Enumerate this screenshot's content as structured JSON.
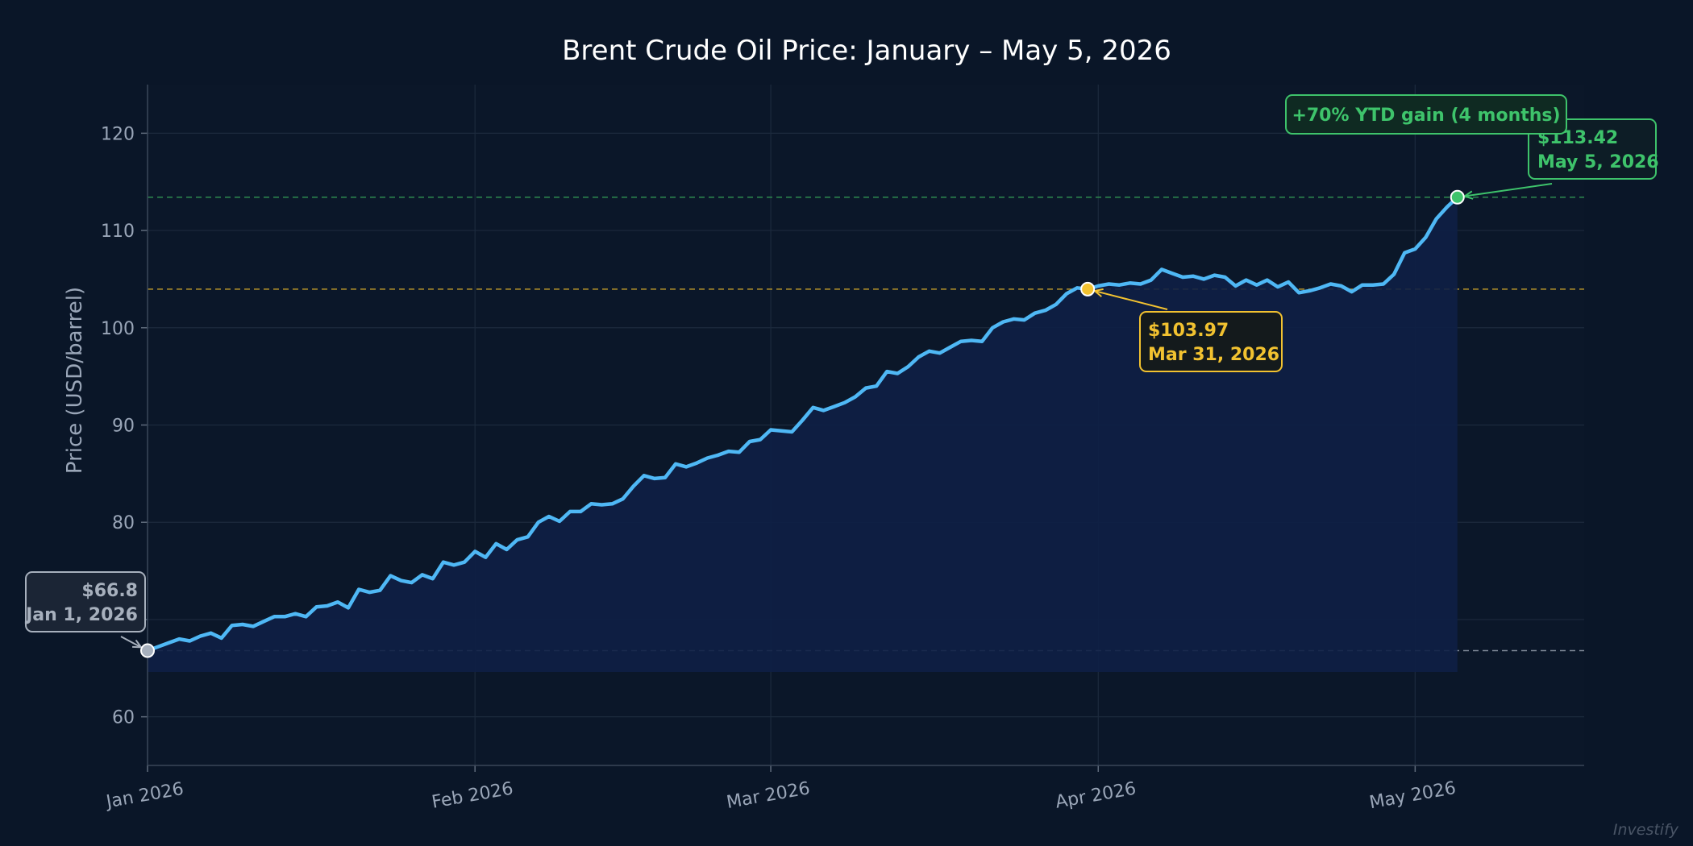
{
  "chart_data": {
    "type": "line",
    "title": "Brent Crude Oil Price: January – May 5, 2026",
    "xlabel": "",
    "ylabel": "Price (USD/barrel)",
    "xlim": [
      "2026-01-01",
      "2026-05-17"
    ],
    "ylim": [
      55,
      125
    ],
    "y_ticks": [
      60,
      70,
      80,
      90,
      100,
      110,
      120
    ],
    "x_ticks": [
      {
        "date": "2026-01-01",
        "label": "Jan 2026"
      },
      {
        "date": "2026-02-01",
        "label": "Feb 2026"
      },
      {
        "date": "2026-03-01",
        "label": "Mar 2026"
      },
      {
        "date": "2026-04-01",
        "label": "Apr 2026"
      },
      {
        "date": "2026-05-01",
        "label": "May 2026"
      }
    ],
    "grid": true,
    "line_color": "#4fb8f5",
    "series": [
      {
        "points": [
          [
            "2026-01-01",
            66.8
          ],
          [
            "2026-01-02",
            67.2
          ],
          [
            "2026-01-03",
            67.6
          ],
          [
            "2026-01-04",
            68.0
          ],
          [
            "2026-01-05",
            67.8
          ],
          [
            "2026-01-06",
            68.3
          ],
          [
            "2026-01-07",
            68.6
          ],
          [
            "2026-01-08",
            68.1
          ],
          [
            "2026-01-09",
            69.4
          ],
          [
            "2026-01-10",
            69.5
          ],
          [
            "2026-01-11",
            69.3
          ],
          [
            "2026-01-12",
            69.8
          ],
          [
            "2026-01-13",
            70.3
          ],
          [
            "2026-01-14",
            70.3
          ],
          [
            "2026-01-15",
            70.6
          ],
          [
            "2026-01-16",
            70.3
          ],
          [
            "2026-01-17",
            71.3
          ],
          [
            "2026-01-18",
            71.4
          ],
          [
            "2026-01-19",
            71.8
          ],
          [
            "2026-01-20",
            71.2
          ],
          [
            "2026-01-21",
            73.1
          ],
          [
            "2026-01-22",
            72.8
          ],
          [
            "2026-01-23",
            73.0
          ],
          [
            "2026-01-24",
            74.5
          ],
          [
            "2026-01-25",
            74.0
          ],
          [
            "2026-01-26",
            73.8
          ],
          [
            "2026-01-27",
            74.6
          ],
          [
            "2026-01-28",
            74.2
          ],
          [
            "2026-01-29",
            75.9
          ],
          [
            "2026-01-30",
            75.6
          ],
          [
            "2026-01-31",
            75.9
          ],
          [
            "2026-02-01",
            77.0
          ],
          [
            "2026-02-02",
            76.4
          ],
          [
            "2026-02-03",
            77.8
          ],
          [
            "2026-02-04",
            77.2
          ],
          [
            "2026-02-05",
            78.2
          ],
          [
            "2026-02-06",
            78.5
          ],
          [
            "2026-02-07",
            80.0
          ],
          [
            "2026-02-08",
            80.6
          ],
          [
            "2026-02-09",
            80.1
          ],
          [
            "2026-02-10",
            81.1
          ],
          [
            "2026-02-11",
            81.1
          ],
          [
            "2026-02-12",
            81.9
          ],
          [
            "2026-02-13",
            81.8
          ],
          [
            "2026-02-14",
            81.9
          ],
          [
            "2026-02-15",
            82.4
          ],
          [
            "2026-02-16",
            83.7
          ],
          [
            "2026-02-17",
            84.8
          ],
          [
            "2026-02-18",
            84.5
          ],
          [
            "2026-02-19",
            84.6
          ],
          [
            "2026-02-20",
            86.0
          ],
          [
            "2026-02-21",
            85.7
          ],
          [
            "2026-02-22",
            86.1
          ],
          [
            "2026-02-23",
            86.6
          ],
          [
            "2026-02-24",
            86.9
          ],
          [
            "2026-02-25",
            87.3
          ],
          [
            "2026-02-26",
            87.2
          ],
          [
            "2026-02-27",
            88.3
          ],
          [
            "2026-02-28",
            88.5
          ],
          [
            "2026-03-01",
            89.5
          ],
          [
            "2026-03-02",
            89.4
          ],
          [
            "2026-03-03",
            89.3
          ],
          [
            "2026-03-04",
            90.5
          ],
          [
            "2026-03-05",
            91.8
          ],
          [
            "2026-03-06",
            91.5
          ],
          [
            "2026-03-07",
            91.9
          ],
          [
            "2026-03-08",
            92.3
          ],
          [
            "2026-03-09",
            92.9
          ],
          [
            "2026-03-10",
            93.8
          ],
          [
            "2026-03-11",
            94.0
          ],
          [
            "2026-03-12",
            95.5
          ],
          [
            "2026-03-13",
            95.3
          ],
          [
            "2026-03-14",
            96.0
          ],
          [
            "2026-03-15",
            97.0
          ],
          [
            "2026-03-16",
            97.6
          ],
          [
            "2026-03-17",
            97.4
          ],
          [
            "2026-03-18",
            98.0
          ],
          [
            "2026-03-19",
            98.6
          ],
          [
            "2026-03-20",
            98.7
          ],
          [
            "2026-03-21",
            98.6
          ],
          [
            "2026-03-22",
            100.0
          ],
          [
            "2026-03-23",
            100.6
          ],
          [
            "2026-03-24",
            100.9
          ],
          [
            "2026-03-25",
            100.8
          ],
          [
            "2026-03-26",
            101.5
          ],
          [
            "2026-03-27",
            101.8
          ],
          [
            "2026-03-28",
            102.4
          ],
          [
            "2026-03-29",
            103.5
          ],
          [
            "2026-03-30",
            104.1
          ],
          [
            "2026-03-31",
            103.97
          ],
          [
            "2026-04-01",
            104.3
          ],
          [
            "2026-04-02",
            104.5
          ],
          [
            "2026-04-03",
            104.4
          ],
          [
            "2026-04-04",
            104.6
          ],
          [
            "2026-04-05",
            104.5
          ],
          [
            "2026-04-06",
            104.9
          ],
          [
            "2026-04-07",
            106.0
          ],
          [
            "2026-04-08",
            105.6
          ],
          [
            "2026-04-09",
            105.2
          ],
          [
            "2026-04-10",
            105.3
          ],
          [
            "2026-04-11",
            105.0
          ],
          [
            "2026-04-12",
            105.4
          ],
          [
            "2026-04-13",
            105.2
          ],
          [
            "2026-04-14",
            104.3
          ],
          [
            "2026-04-15",
            104.9
          ],
          [
            "2026-04-16",
            104.4
          ],
          [
            "2026-04-17",
            104.9
          ],
          [
            "2026-04-18",
            104.2
          ],
          [
            "2026-04-19",
            104.7
          ],
          [
            "2026-04-20",
            103.6
          ],
          [
            "2026-04-21",
            103.8
          ],
          [
            "2026-04-22",
            104.1
          ],
          [
            "2026-04-23",
            104.5
          ],
          [
            "2026-04-24",
            104.3
          ],
          [
            "2026-04-25",
            103.7
          ],
          [
            "2026-04-26",
            104.4
          ],
          [
            "2026-04-27",
            104.4
          ],
          [
            "2026-04-28",
            104.5
          ],
          [
            "2026-04-29",
            105.5
          ],
          [
            "2026-04-30",
            107.7
          ],
          [
            "2026-05-01",
            108.1
          ],
          [
            "2026-05-02",
            109.3
          ],
          [
            "2026-05-03",
            111.2
          ],
          [
            "2026-05-04",
            112.4
          ],
          [
            "2026-05-05",
            113.42
          ]
        ]
      }
    ],
    "reference_lines": [
      {
        "y": 66.8,
        "color": "#7d8796"
      },
      {
        "y": 103.97,
        "color": "#b8952a"
      },
      {
        "y": 113.42,
        "color": "#2e8b4f"
      }
    ],
    "annotations": [
      {
        "x": "2026-01-01",
        "y": 66.8,
        "line1": "$66.8",
        "line2": "Jan 1, 2026",
        "color": "#a7b0bd",
        "fill": "#1b2535"
      },
      {
        "x": "2026-03-31",
        "y": 103.97,
        "line1": "$103.97",
        "line2": "Mar 31, 2026",
        "color": "#f2c230",
        "fill": "#141a1c"
      },
      {
        "x": "2026-05-05",
        "y": 113.42,
        "line1": "$113.42",
        "line2": "May 5, 2026",
        "color": "#3ec36b",
        "fill": "#0d1d26"
      }
    ],
    "callout": {
      "text": "+70% YTD gain (4 months)",
      "color": "#3ec36b"
    },
    "watermark": "Investify"
  }
}
